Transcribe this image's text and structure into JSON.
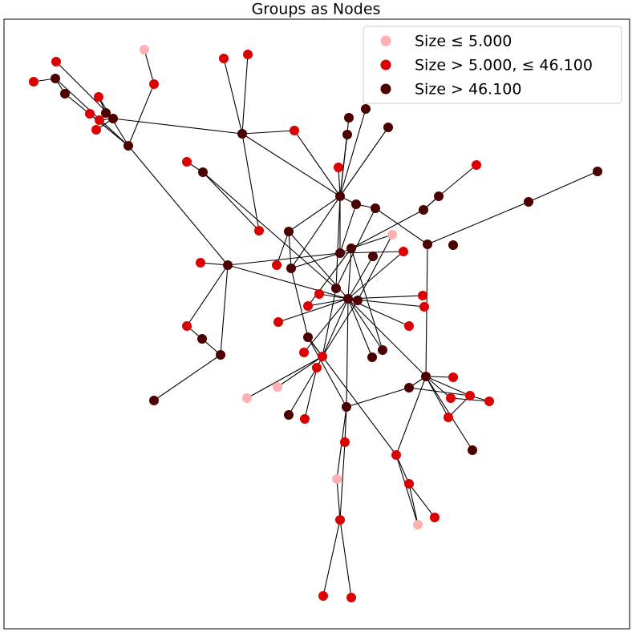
{
  "title": "Groups as Nodes",
  "legend": [
    {
      "label": "Size ≤ 5.000",
      "color": "#ffb0b0"
    },
    {
      "label": "Size > 5.000, ≤ 46.100",
      "color": "#dd0000"
    },
    {
      "label": "Size > 46.100",
      "color": "#4d0000"
    }
  ]
}
